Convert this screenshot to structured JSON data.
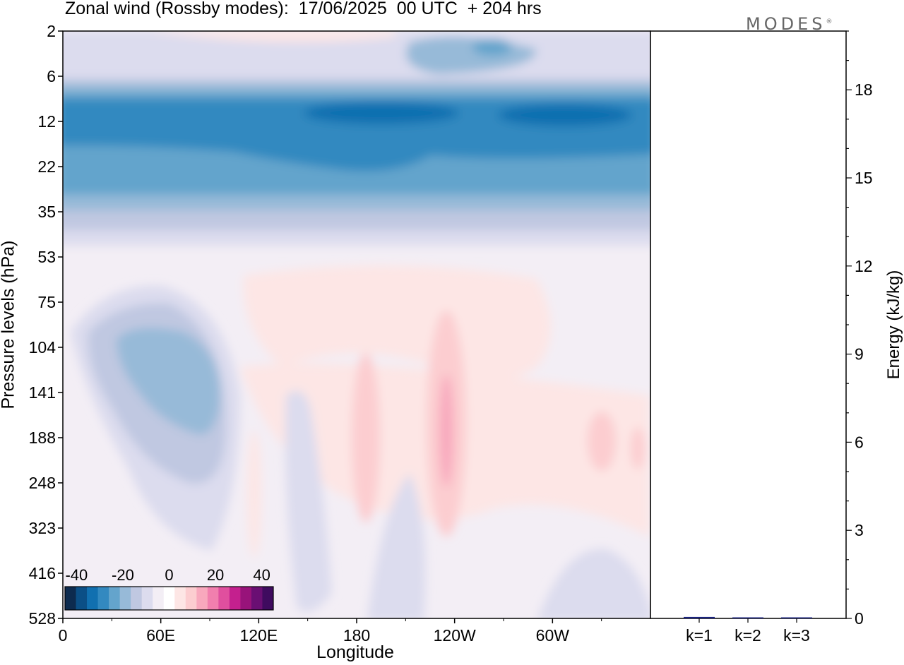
{
  "title": "Zonal wind (Rossby modes):  17/06/2025  00 UTC  + 204 hrs",
  "logo": "MODES",
  "logo_mark": "®",
  "chart_data": [
    {
      "type": "heatmap",
      "variable": "Zonal wind (Rossby modes)",
      "xlabel": "Longitude",
      "ylabel": "Pressure levels (hPa)",
      "x_ticks": [
        "0",
        "60E",
        "120E",
        "180",
        "120W",
        "60W"
      ],
      "x_tick_values": [
        0,
        60,
        120,
        180,
        240,
        300
      ],
      "xlim": [
        0,
        360
      ],
      "y_ticks": [
        "2",
        "6",
        "12",
        "22",
        "35",
        "53",
        "75",
        "104",
        "141",
        "188",
        "248",
        "323",
        "416",
        "528"
      ],
      "y_scale": "model levels, pressure increasing downward",
      "colorbar": {
        "ticks": [
          "-40",
          "-20",
          "0",
          "20",
          "40"
        ],
        "range": [
          -45,
          45
        ],
        "colors": [
          "#0d2b4f",
          "#0b4f86",
          "#1170b0",
          "#3389c0",
          "#64a4cc",
          "#97bad8",
          "#c0c8e1",
          "#dcdcee",
          "#f3eef5",
          "#ffffff",
          "#fde6e5",
          "#fccdd0",
          "#f8a8bd",
          "#f17fae",
          "#e04f9e",
          "#c4208e",
          "#98137a",
          "#6a0f73",
          "#3f0b5f"
        ]
      },
      "description_bands": [
        {
          "levels": "6-12",
          "lon": [
            0,
            360
          ],
          "value": -25
        },
        {
          "levels": "12-22",
          "lon": [
            0,
            360
          ],
          "value": -32
        },
        {
          "levels": "22-35",
          "lon": [
            0,
            360
          ],
          "value": -18
        },
        {
          "levels": "104-188",
          "lon": [
            25,
            95
          ],
          "value": -15
        },
        {
          "levels": "104-323",
          "lon": [
            225,
            245
          ],
          "value": 10
        },
        {
          "levels": "104-323",
          "lon": [
            180,
            195
          ],
          "value": 6
        }
      ]
    },
    {
      "type": "bar",
      "categories": [
        "k=1",
        "k=2",
        "k=3"
      ],
      "values": [
        0.05,
        0.02,
        0.03
      ],
      "ylabel": "Energy (kJ/kg)",
      "ylim": [
        0,
        20
      ],
      "y_ticks": [
        0,
        3,
        6,
        9,
        12,
        15,
        18
      ],
      "bar_color": "#1a237e"
    }
  ]
}
